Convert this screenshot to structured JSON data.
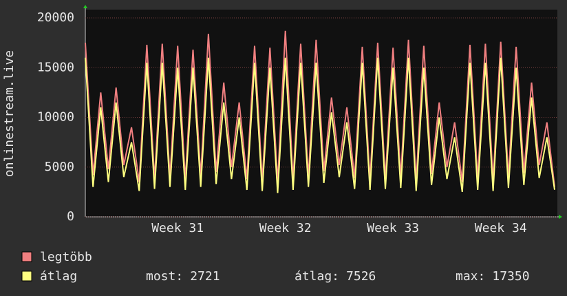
{
  "chart_data": {
    "type": "line",
    "y_axis_label": "onlinestream.live",
    "ylim": [
      0,
      20000
    ],
    "yticks": [
      0,
      5000,
      10000,
      15000,
      20000
    ],
    "grid": true,
    "categories": [
      null,
      null,
      null,
      null,
      null,
      null,
      null,
      null,
      null,
      null,
      null,
      null,
      "Week 31",
      null,
      null,
      null,
      null,
      null,
      null,
      null,
      null,
      null,
      null,
      null,
      null,
      null,
      "Week 32",
      null,
      null,
      null,
      null,
      null,
      null,
      null,
      null,
      null,
      null,
      null,
      null,
      null,
      "Week 33",
      null,
      null,
      null,
      null,
      null,
      null,
      null,
      null,
      null,
      null,
      null,
      null,
      null,
      "Week 34",
      null,
      null,
      null,
      null,
      null,
      null,
      null
    ],
    "series": [
      {
        "name": "legtöbb",
        "color": "#f07f80",
        "values": [
          17500,
          4200,
          12500,
          4800,
          13000,
          5200,
          9000,
          3500,
          17300,
          3800,
          17400,
          4000,
          17200,
          3700,
          16800,
          4100,
          18400,
          4500,
          13500,
          5000,
          11500,
          3800,
          17200,
          3600,
          17000,
          3500,
          18700,
          3700,
          17400,
          4000,
          17800,
          4600,
          12000,
          5200,
          11000,
          3900,
          17100,
          3700,
          17500,
          3800,
          17000,
          4000,
          17800,
          3600,
          17200,
          4300,
          11500,
          5000,
          9500,
          3500,
          17300,
          3800,
          17400,
          3600,
          17600,
          4000,
          17100,
          4400,
          13500,
          5200,
          9500,
          3000
        ]
      },
      {
        "name": "átlag",
        "color": "#ffff80",
        "values": [
          16000,
          3000,
          11000,
          3500,
          11500,
          4000,
          7500,
          2600,
          15500,
          2800,
          15500,
          3000,
          15000,
          2700,
          15000,
          3000,
          16000,
          3300,
          11500,
          3800,
          10000,
          2700,
          15500,
          2600,
          15000,
          2400,
          16000,
          2700,
          15500,
          3000,
          15500,
          3400,
          10500,
          4000,
          9500,
          2800,
          15500,
          2700,
          16000,
          2800,
          15000,
          2900,
          16000,
          2600,
          15000,
          3200,
          10000,
          3800,
          8000,
          2500,
          15500,
          2700,
          15500,
          2600,
          16000,
          2900,
          15000,
          3200,
          12000,
          3900,
          8000,
          2721
        ]
      }
    ],
    "stats": [
      {
        "label": "most:",
        "value": 2721
      },
      {
        "label": "átlag:",
        "value": 7526
      },
      {
        "label": "max:",
        "value": 17350
      }
    ]
  }
}
